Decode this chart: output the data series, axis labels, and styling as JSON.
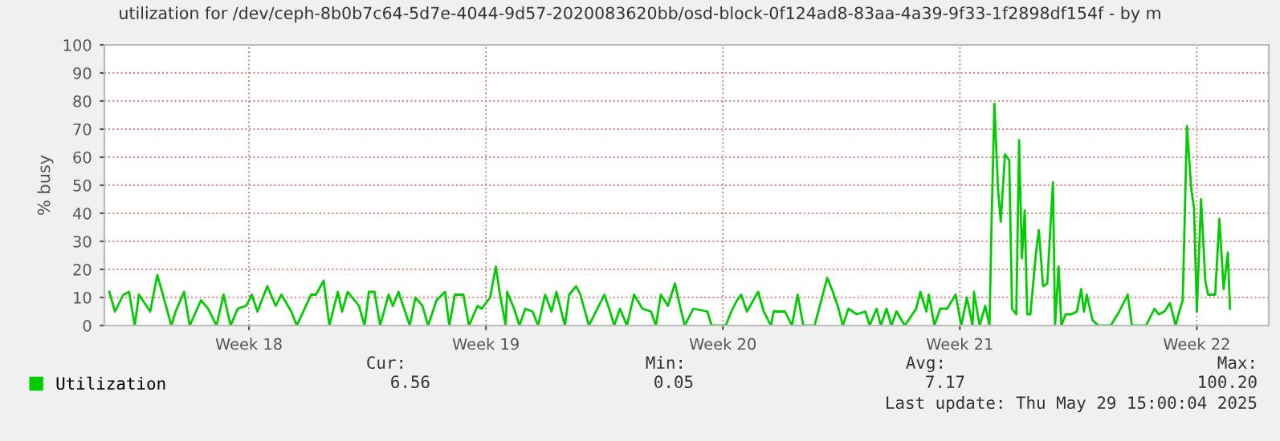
{
  "chart_data": {
    "type": "line",
    "title": "utilization for /dev/ceph-8b0b7c64-5d7e-4044-9d57-2020083620bb/osd-block-0f124ad8-83aa-4a39-9f33-1f2898df154f - by m",
    "ylabel": "% busy",
    "x": [
      "2025-04-23T21:00",
      "2025-04-24T01:00",
      "2025-04-24T07:00",
      "2025-04-24T11:00",
      "2025-04-24T15:00",
      "2025-04-24T18:00",
      "2025-04-25T02:00",
      "2025-04-25T07:00",
      "2025-04-25T11:00",
      "2025-04-25T17:00",
      "2025-04-25T20:00",
      "2025-04-26T02:00",
      "2025-04-26T06:00",
      "2025-04-26T14:00",
      "2025-04-26T19:00",
      "2025-04-27T01:00",
      "2025-04-27T06:00",
      "2025-04-27T11:00",
      "2025-04-27T16:00",
      "2025-04-27T22:00",
      "2025-04-28T02:00",
      "2025-04-28T06:00",
      "2025-04-28T13:00",
      "2025-04-28T19:00",
      "2025-04-28T23:00",
      "2025-04-29T06:00",
      "2025-04-29T10:00",
      "2025-04-29T20:00",
      "2025-04-29T23:30",
      "2025-04-30T05:00",
      "2025-04-30T09:00",
      "2025-04-30T15:00",
      "2025-04-30T18:00",
      "2025-04-30T22:00",
      "2025-05-01T06:00",
      "2025-05-01T10:00",
      "2025-05-01T13:00",
      "2025-05-01T17:00",
      "2025-05-01T21:00",
      "2025-05-02T03:00",
      "2025-05-02T06:00",
      "2025-05-02T10:00",
      "2025-05-02T18:00",
      "2025-05-02T22:00",
      "2025-05-03T03:00",
      "2025-05-03T07:00",
      "2025-05-03T13:00",
      "2025-05-03T19:00",
      "2025-05-03T22:00",
      "2025-05-04T02:00",
      "2025-05-04T08:00",
      "2025-05-04T12:00",
      "2025-05-04T18:00",
      "2025-05-04T21:00",
      "2025-05-05T03:00",
      "2025-05-05T07:00",
      "2025-05-05T10:00",
      "2025-05-05T14:00",
      "2025-05-05T15:00",
      "2025-05-05T20:00",
      "2025-05-05T23:45",
      "2025-05-06T04:00",
      "2025-05-06T09:00",
      "2025-05-06T13:00",
      "2025-05-06T18:00",
      "2025-05-06T22:30",
      "2025-05-07T02:00",
      "2025-05-07T08:00",
      "2025-05-07T11:00",
      "2025-05-07T16:00",
      "2025-05-07T19:00",
      "2025-05-08T01:00",
      "2025-05-08T12:00",
      "2025-05-08T16:00",
      "2025-05-08T19:00",
      "2025-05-08T23:00",
      "2025-05-09T04:00",
      "2025-05-09T09:00",
      "2025-05-09T15:00",
      "2025-05-09T21:00",
      "2025-05-10T00:30",
      "2025-05-10T04:00",
      "2025-05-10T09:00",
      "2025-05-10T14:00",
      "2025-05-10T18:00",
      "2025-05-10T21:00",
      "2025-05-11T03:00",
      "2025-05-11T13:00",
      "2025-05-11T16:00",
      "2025-05-12T02:00",
      "2025-05-12T06:00",
      "2025-05-12T10:00",
      "2025-05-12T13:00",
      "2025-05-12T17:00",
      "2025-05-13T01:00",
      "2025-05-13T05:00",
      "2025-05-13T10:00",
      "2025-05-13T12:00",
      "2025-05-13T20:00",
      "2025-05-14T01:00",
      "2025-05-14T05:00",
      "2025-05-14T09:00",
      "2025-05-14T17:00",
      "2025-05-15T02:00",
      "2025-05-15T06:00",
      "2025-05-15T10:00",
      "2025-05-15T13:00",
      "2025-05-15T17:00",
      "2025-05-15T23:00",
      "2025-05-16T05:00",
      "2025-05-16T08:00",
      "2025-05-16T13:00",
      "2025-05-16T16:00",
      "2025-05-16T20:00",
      "2025-05-16T23:30",
      "2025-05-17T03:00",
      "2025-05-17T09:00",
      "2025-05-17T17:00",
      "2025-05-17T20:00",
      "2025-05-18T00:15",
      "2025-05-18T02:00",
      "2025-05-18T06:00",
      "2025-05-18T10:00",
      "2025-05-18T15:00",
      "2025-05-18T21:00",
      "2025-05-19T01:00",
      "2025-05-19T05:00",
      "2025-05-19T09:00",
      "2025-05-19T10:00",
      "2025-05-19T14:00",
      "2025-05-19T18:00",
      "2025-05-19T21:00",
      "2025-05-19T22:30",
      "2025-05-20T00:30",
      "2025-05-20T03:00",
      "2025-05-20T05:00",
      "2025-05-20T08:00",
      "2025-05-20T11:00",
      "2025-05-20T13:00",
      "2025-05-20T16:00",
      "2025-05-20T18:00",
      "2025-05-20T20:00",
      "2025-05-20T22:00",
      "2025-05-20T23:45",
      "2025-05-21T02:00",
      "2025-05-21T06:00",
      "2025-05-21T08:00",
      "2025-05-21T11:00",
      "2025-05-21T14:00",
      "2025-05-21T18:00",
      "2025-05-21T19:30",
      "2025-05-21T22:00",
      "2025-05-22T00:00",
      "2025-05-22T03:00",
      "2025-05-22T07:00",
      "2025-05-22T11:00",
      "2025-05-22T14:00",
      "2025-05-22T16:00",
      "2025-05-22T18:00",
      "2025-05-22T22:00",
      "2025-05-23T02:00",
      "2025-05-23T11:00",
      "2025-05-23T17:00",
      "2025-05-23T23:00",
      "2025-05-24T02:00",
      "2025-05-24T12:00",
      "2025-05-24T18:00",
      "2025-05-24T21:00",
      "2025-05-25T01:00",
      "2025-05-25T05:00",
      "2025-05-25T09:00",
      "2025-05-25T11:00",
      "2025-05-25T14:00",
      "2025-05-25T17:00",
      "2025-05-25T20:00",
      "2025-05-25T22:00",
      "2025-05-26T00:00",
      "2025-05-26T03:00",
      "2025-05-26T06:00",
      "2025-05-26T08:00",
      "2025-05-26T13:00",
      "2025-05-26T16:00",
      "2025-05-26T19:00",
      "2025-05-26T22:00",
      "2025-05-26T23:30"
    ],
    "series": [
      {
        "name": "Utilization",
        "color": "#00cc00",
        "values": [
          12,
          5,
          11,
          12,
          0,
          11,
          5,
          18,
          11,
          0,
          5,
          12,
          0,
          9,
          6,
          0,
          11,
          0,
          6,
          7,
          11,
          5,
          14,
          7,
          11,
          5,
          0,
          11,
          11,
          16,
          0,
          12,
          5,
          12,
          7,
          0,
          12,
          12,
          0,
          11,
          7,
          12,
          0,
          10,
          7,
          0,
          9,
          12,
          0,
          11,
          11,
          0,
          7,
          6,
          10,
          21,
          11,
          0,
          12,
          6,
          0,
          6,
          5,
          0,
          11,
          5,
          12,
          0,
          11,
          14,
          11,
          0,
          11,
          5,
          0,
          6,
          0,
          11,
          6,
          5,
          0,
          11,
          7,
          15,
          6,
          0,
          6,
          5,
          0,
          0,
          5,
          9,
          11,
          5,
          12,
          5,
          0,
          5,
          5,
          0,
          11,
          0,
          0,
          17,
          12,
          6,
          0,
          6,
          4,
          5,
          0,
          6,
          0,
          6,
          0,
          5,
          0,
          6,
          12,
          5,
          11,
          0,
          6,
          6,
          11,
          0,
          10,
          0,
          12,
          0,
          7,
          0,
          37,
          79,
          49,
          37,
          61,
          59,
          6,
          4,
          66,
          24,
          41,
          4,
          4,
          26,
          34,
          14,
          15,
          51,
          0,
          21,
          0,
          4,
          4,
          5,
          13,
          5,
          11,
          2,
          0,
          0,
          5,
          11,
          0,
          0,
          6,
          4,
          5,
          8,
          0,
          4,
          9,
          71,
          49,
          42,
          5,
          45,
          16,
          11,
          11,
          38,
          13,
          26,
          6
        ]
      }
    ],
    "xlim": [
      "2025-04-23T17:30",
      "2025-05-28T03:00"
    ],
    "xticks": [
      {
        "value": "2025-04-28",
        "label": "Week 18"
      },
      {
        "value": "2025-05-05",
        "label": "Week 19"
      },
      {
        "value": "2025-05-12",
        "label": "Week 20"
      },
      {
        "value": "2025-05-19",
        "label": "Week 21"
      },
      {
        "value": "2025-05-26",
        "label": "Week 22"
      }
    ],
    "ylim": [
      0,
      100
    ],
    "yticks": [
      0,
      10,
      20,
      30,
      40,
      50,
      60,
      70,
      80,
      90,
      100
    ],
    "grid": true,
    "legend": "bottom left",
    "annotations": [
      "Cur:",
      "6.56",
      "Min:",
      "0.05",
      "Avg:",
      "7.17",
      "Max:",
      "100.20",
      "Last update: Thu May 29 15:00:04 2025"
    ]
  }
}
